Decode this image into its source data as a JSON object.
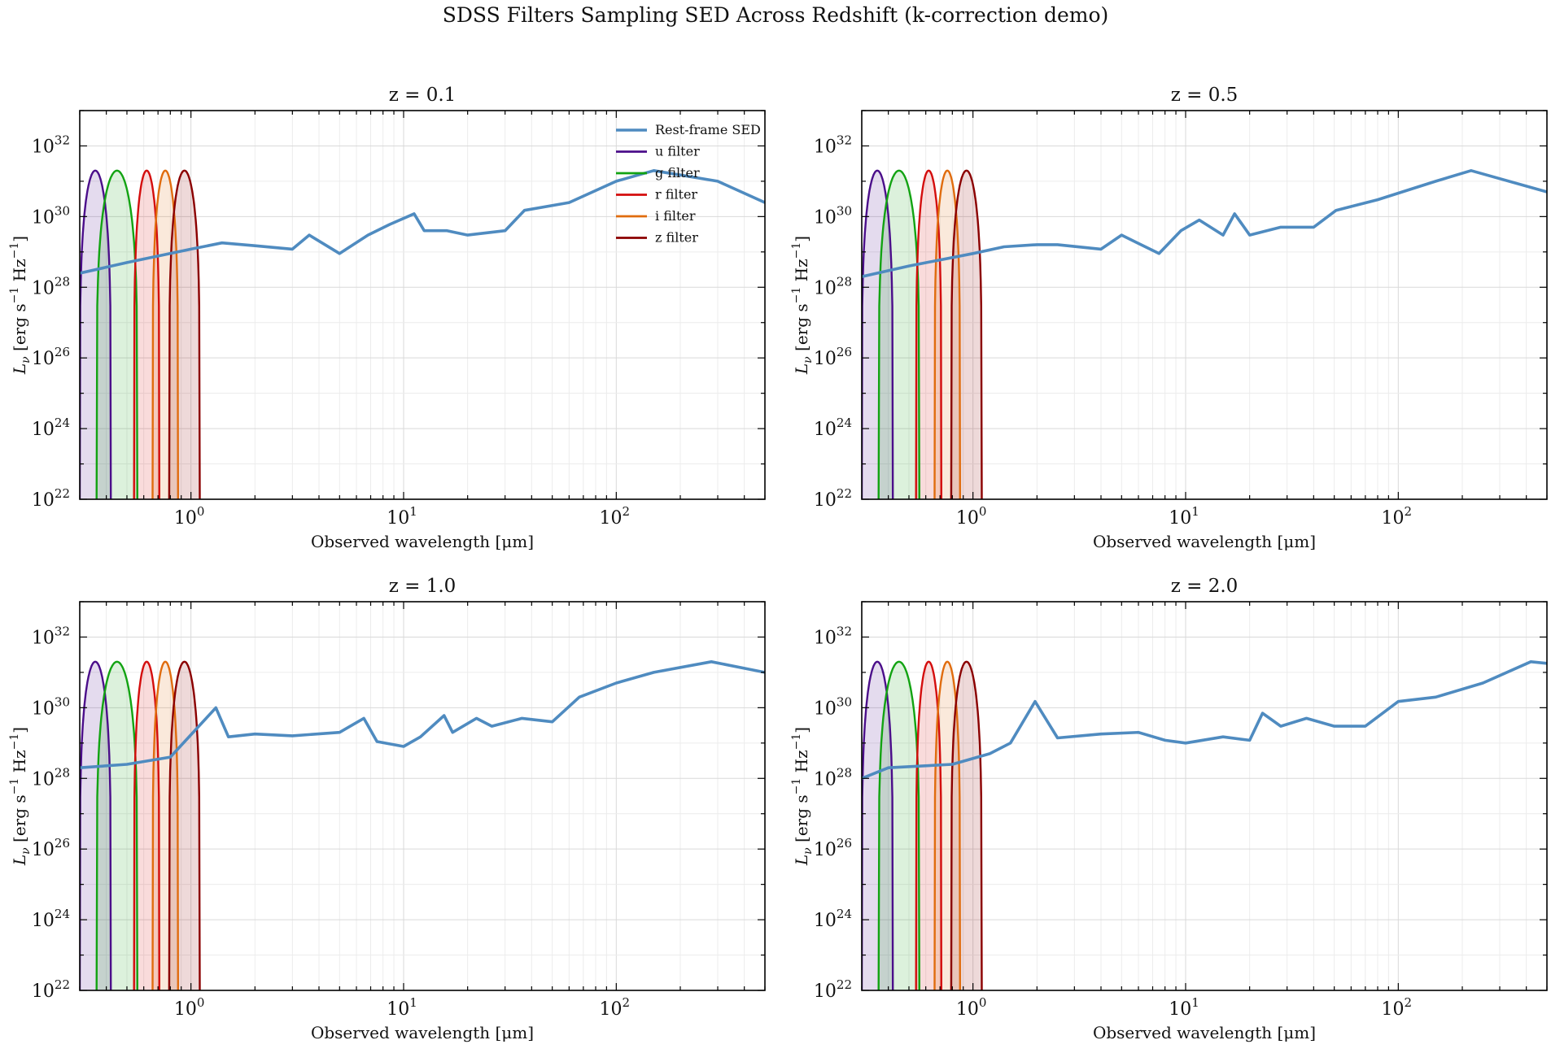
{
  "figure_title": "SDSS Filters Sampling SED Across Redshift (k-correction demo)",
  "colors": {
    "sed": "#4f8bc0",
    "u": "#4b0e8a",
    "g": "#12a312",
    "r": "#d40d0d",
    "i": "#e06c0e",
    "z": "#8b0000"
  },
  "chart_data": [
    {
      "type": "line",
      "title": "z = 0.1",
      "redshift": 0.1,
      "xlabel": "Observed wavelength [μm]",
      "ylabel": "L_ν [erg s^-1 Hz^-1]",
      "xscale": "log",
      "yscale": "log",
      "xlim": [
        0.3,
        500
      ],
      "ylim": [
        1e+22,
        1e+33
      ],
      "xticks": [
        "10^0",
        "10^1",
        "10^2"
      ],
      "yticks": [
        "10^22",
        "10^24",
        "10^26",
        "10^28",
        "10^30",
        "10^32"
      ],
      "grid": true,
      "legend": {
        "placement": "top-right",
        "entries": [
          "Rest-frame SED",
          "u filter",
          "g filter",
          "r filter",
          "i filter",
          "z filter"
        ]
      },
      "series": [
        {
          "name": "Rest-frame SED",
          "x": [
            0.3,
            0.5,
            1.0,
            1.4,
            2.0,
            3.0,
            3.6,
            5.0,
            6.8,
            8.6,
            11.2,
            12.5,
            16.0,
            20.0,
            30.0,
            37.0,
            60.0,
            100.0,
            150.0,
            300.0,
            500.0
          ],
          "y": [
            2.5e+28,
            5e+28,
            1.2e+29,
            1.8e+29,
            1.5e+29,
            1.2e+29,
            3e+29,
            9e+28,
            3e+29,
            6e+29,
            1.2e+30,
            4e+29,
            4e+29,
            3e+29,
            4e+29,
            1.5e+30,
            2.5e+30,
            1e+31,
            2e+31,
            1e+31,
            2.5e+30
          ]
        },
        {
          "name": "u filter",
          "x": [
            0.3,
            0.33,
            0.36,
            0.39,
            0.42
          ],
          "y": [
            1e+22,
            1e+31,
            2e+31,
            1e+31,
            1e+22
          ]
        },
        {
          "name": "g filter",
          "x": [
            0.36,
            0.41,
            0.47,
            0.52,
            0.56
          ],
          "y": [
            1e+22,
            1e+31,
            2e+31,
            2e+31,
            1e+22
          ]
        },
        {
          "name": "r filter",
          "x": [
            0.54,
            0.58,
            0.63,
            0.67,
            0.71
          ],
          "y": [
            1e+22,
            1e+31,
            2e+31,
            2e+31,
            1e+22
          ]
        },
        {
          "name": "i filter",
          "x": [
            0.66,
            0.69,
            0.76,
            0.82,
            0.87
          ],
          "y": [
            1e+22,
            1e+31,
            2e+31,
            2e+31,
            1e+22
          ]
        },
        {
          "name": "z filter",
          "x": [
            0.79,
            0.83,
            0.9,
            1.02,
            1.1
          ],
          "y": [
            1e+22,
            1e+31,
            2e+31,
            1e+31,
            1e+22
          ]
        }
      ]
    },
    {
      "type": "line",
      "title": "z = 0.5",
      "redshift": 0.5,
      "xlabel": "Observed wavelength [μm]",
      "ylabel": "L_ν [erg s^-1 Hz^-1]",
      "xscale": "log",
      "yscale": "log",
      "xlim": [
        0.3,
        500
      ],
      "ylim": [
        1e+22,
        1e+33
      ],
      "xticks": [
        "10^0",
        "10^1",
        "10^2"
      ],
      "yticks": [
        "10^22",
        "10^24",
        "10^26",
        "10^28",
        "10^30",
        "10^32"
      ],
      "grid": true,
      "series": [
        {
          "name": "Rest-frame SED",
          "x": [
            0.3,
            0.5,
            1.0,
            1.4,
            2.0,
            2.5,
            4.0,
            5.0,
            7.5,
            9.5,
            11.6,
            15.0,
            17.0,
            20.0,
            28.0,
            40.0,
            51.0,
            80.0,
            150.0,
            220.0,
            500.0
          ],
          "y": [
            2e+28,
            4e+28,
            9e+28,
            1.4e+29,
            1.6e+29,
            1.6e+29,
            1.2e+29,
            3e+29,
            9e+28,
            4e+29,
            8e+29,
            3e+29,
            1.2e+30,
            3e+29,
            5e+29,
            5e+29,
            1.5e+30,
            3e+30,
            1e+31,
            2e+31,
            5e+30
          ]
        },
        {
          "name": "u filter",
          "x": [
            0.3,
            0.33,
            0.36,
            0.39,
            0.42
          ],
          "y": [
            1e+22,
            1e+31,
            2e+31,
            1e+31,
            1e+22
          ]
        },
        {
          "name": "g filter",
          "x": [
            0.36,
            0.41,
            0.47,
            0.52,
            0.56
          ],
          "y": [
            1e+22,
            1e+31,
            2e+31,
            2e+31,
            1e+22
          ]
        },
        {
          "name": "r filter",
          "x": [
            0.54,
            0.58,
            0.63,
            0.67,
            0.71
          ],
          "y": [
            1e+22,
            1e+31,
            2e+31,
            2e+31,
            1e+22
          ]
        },
        {
          "name": "i filter",
          "x": [
            0.66,
            0.69,
            0.76,
            0.82,
            0.87
          ],
          "y": [
            1e+22,
            1e+31,
            2e+31,
            2e+31,
            1e+22
          ]
        },
        {
          "name": "z filter",
          "x": [
            0.79,
            0.83,
            0.9,
            1.02,
            1.1
          ],
          "y": [
            1e+22,
            1e+31,
            2e+31,
            1e+31,
            1e+22
          ]
        }
      ]
    },
    {
      "type": "line",
      "title": "z = 1.0",
      "redshift": 1.0,
      "xlabel": "Observed wavelength [μm]",
      "ylabel": "L_ν [erg s^-1 Hz^-1]",
      "xscale": "log",
      "yscale": "log",
      "xlim": [
        0.3,
        500
      ],
      "ylim": [
        1e+22,
        1e+33
      ],
      "xticks": [
        "10^0",
        "10^1",
        "10^2"
      ],
      "yticks": [
        "10^22",
        "10^24",
        "10^26",
        "10^28",
        "10^30",
        "10^32"
      ],
      "grid": true,
      "series": [
        {
          "name": "Rest-frame SED",
          "x": [
            0.3,
            0.5,
            0.8,
            1.31,
            1.5,
            2.0,
            3.0,
            5.0,
            6.5,
            7.5,
            10.0,
            12.0,
            15.5,
            17.0,
            22.0,
            26.0,
            36.0,
            50.0,
            67.0,
            100.0,
            150.0,
            280.0,
            500.0
          ],
          "y": [
            2e+28,
            2.5e+28,
            4e+28,
            1e+30,
            1.5e+29,
            1.8e+29,
            1.6e+29,
            2e+29,
            5e+29,
            1.1e+29,
            8e+28,
            1.5e+29,
            6e+29,
            2e+29,
            5e+29,
            3e+29,
            5e+29,
            4e+29,
            2e+30,
            5e+30,
            1e+31,
            2e+31,
            1e+31
          ]
        },
        {
          "name": "u filter",
          "x": [
            0.3,
            0.33,
            0.36,
            0.39,
            0.42
          ],
          "y": [
            1e+22,
            1e+31,
            2e+31,
            1e+31,
            1e+22
          ]
        },
        {
          "name": "g filter",
          "x": [
            0.36,
            0.41,
            0.47,
            0.52,
            0.56
          ],
          "y": [
            1e+22,
            1e+31,
            2e+31,
            2e+31,
            1e+22
          ]
        },
        {
          "name": "r filter",
          "x": [
            0.54,
            0.58,
            0.63,
            0.67,
            0.71
          ],
          "y": [
            1e+22,
            1e+31,
            2e+31,
            2e+31,
            1e+22
          ]
        },
        {
          "name": "i filter",
          "x": [
            0.66,
            0.69,
            0.76,
            0.82,
            0.87
          ],
          "y": [
            1e+22,
            1e+31,
            2e+31,
            2e+31,
            1e+22
          ]
        },
        {
          "name": "z filter",
          "x": [
            0.79,
            0.83,
            0.9,
            1.02,
            1.1
          ],
          "y": [
            1e+22,
            1e+31,
            2e+31,
            1e+31,
            1e+22
          ]
        }
      ]
    },
    {
      "type": "line",
      "title": "z = 2.0",
      "redshift": 2.0,
      "xlabel": "Observed wavelength [μm]",
      "ylabel": "L_ν [erg s^-1 Hz^-1]",
      "xscale": "log",
      "yscale": "log",
      "xlim": [
        0.3,
        500
      ],
      "ylim": [
        1e+22,
        1e+33
      ],
      "xticks": [
        "10^0",
        "10^1",
        "10^2"
      ],
      "yticks": [
        "10^22",
        "10^24",
        "10^26",
        "10^28",
        "10^30",
        "10^32"
      ],
      "grid": true,
      "series": [
        {
          "name": "Rest-frame SED",
          "x": [
            0.3,
            0.4,
            0.8,
            1.2,
            1.5,
            1.96,
            2.5,
            4.0,
            6.0,
            8.0,
            10.0,
            15.0,
            20.0,
            23.0,
            28.0,
            37.0,
            50.0,
            70.0,
            100.0,
            150.0,
            250.0,
            420.0,
            500.0
          ],
          "y": [
            1e+28,
            2e+28,
            2.5e+28,
            5e+28,
            1e+29,
            1.5e+30,
            1.4e+29,
            1.8e+29,
            2e+29,
            1.2e+29,
            1e+29,
            1.5e+29,
            1.2e+29,
            7e+29,
            3e+29,
            5e+29,
            3e+29,
            3e+29,
            1.5e+30,
            2e+30,
            5e+30,
            2e+31,
            1.8e+31
          ]
        },
        {
          "name": "u filter",
          "x": [
            0.3,
            0.33,
            0.36,
            0.39,
            0.42
          ],
          "y": [
            1e+22,
            1e+31,
            2e+31,
            1e+31,
            1e+22
          ]
        },
        {
          "name": "g filter",
          "x": [
            0.36,
            0.41,
            0.47,
            0.52,
            0.56
          ],
          "y": [
            1e+22,
            1e+31,
            2e+31,
            2e+31,
            1e+22
          ]
        },
        {
          "name": "r filter",
          "x": [
            0.54,
            0.58,
            0.63,
            0.67,
            0.71
          ],
          "y": [
            1e+22,
            1e+31,
            2e+31,
            2e+31,
            1e+22
          ]
        },
        {
          "name": "i filter",
          "x": [
            0.66,
            0.69,
            0.76,
            0.82,
            0.87
          ],
          "y": [
            1e+22,
            1e+31,
            2e+31,
            2e+31,
            1e+22
          ]
        },
        {
          "name": "z filter",
          "x": [
            0.79,
            0.83,
            0.9,
            1.02,
            1.1
          ],
          "y": [
            1e+22,
            1e+31,
            2e+31,
            1e+31,
            1e+22
          ]
        }
      ]
    }
  ]
}
